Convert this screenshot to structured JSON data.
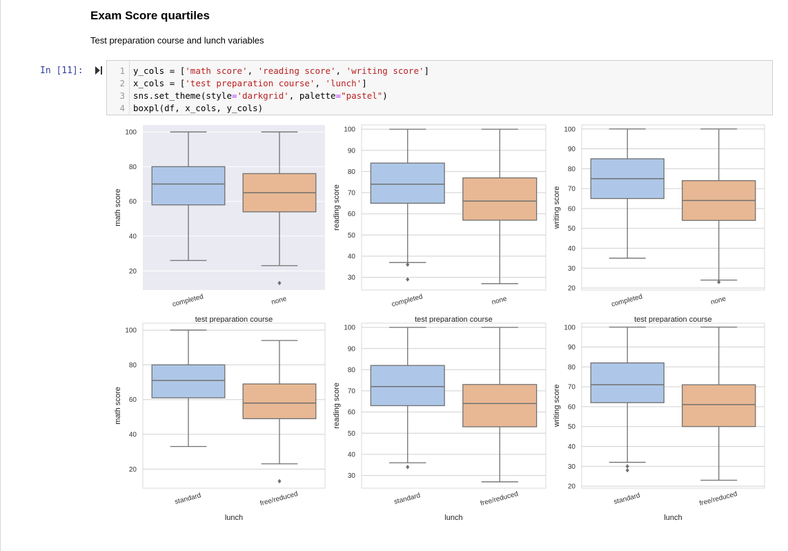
{
  "markdown": {
    "title": "Exam Score quartiles",
    "subtitle": "Test preparation course and lunch variables"
  },
  "cell": {
    "prompt": "In [11]:",
    "lines": [
      {
        "num": "1",
        "tokens": [
          [
            "y_cols ",
            ""
          ],
          [
            "=",
            ""
          ],
          [
            " [",
            ""
          ],
          [
            "'math score'",
            "str"
          ],
          [
            ", ",
            ""
          ],
          [
            "'reading score'",
            "str"
          ],
          [
            ", ",
            ""
          ],
          [
            "'writing score'",
            "str"
          ],
          [
            "]",
            ""
          ]
        ]
      },
      {
        "num": "2",
        "tokens": [
          [
            "x_cols ",
            ""
          ],
          [
            "=",
            ""
          ],
          [
            " [",
            ""
          ],
          [
            "'test preparation course'",
            "str"
          ],
          [
            ", ",
            ""
          ],
          [
            "'lunch'",
            "str"
          ],
          [
            "]",
            ""
          ]
        ]
      },
      {
        "num": "3",
        "tokens": [
          [
            "sns.set_theme(style",
            ""
          ],
          [
            "=",
            "op"
          ],
          [
            "'darkgrid'",
            "str"
          ],
          [
            ", palette",
            ""
          ],
          [
            "=",
            "op"
          ],
          [
            "\"pastel\"",
            "str"
          ],
          [
            ")",
            ""
          ]
        ]
      },
      {
        "num": "4",
        "tokens": [
          [
            "boxpl(df, x_cols, y_cols)",
            ""
          ]
        ]
      }
    ]
  },
  "colors": {
    "box1": "#aec7e8",
    "box2": "#e8b894",
    "line": "#707070",
    "grid_dark": "#eaeaf2",
    "grid_line": "#d0d0d0"
  },
  "chart_data": [
    {
      "type": "box",
      "ylabel": "math score",
      "xlabel": "test preparation course",
      "categories": [
        "completed",
        "none"
      ],
      "ylim": [
        9,
        104
      ],
      "yticks": [
        20,
        40,
        60,
        80,
        100
      ],
      "style": "darkgrid",
      "boxes": [
        {
          "whislo": 26,
          "q1": 58,
          "med": 70,
          "q3": 80,
          "whishi": 100,
          "fliers": []
        },
        {
          "whislo": 23,
          "q1": 54,
          "med": 65,
          "q3": 76,
          "whishi": 100,
          "fliers": [
            13
          ]
        }
      ]
    },
    {
      "type": "box",
      "ylabel": "reading score",
      "xlabel": "test preparation course",
      "categories": [
        "completed",
        "none"
      ],
      "ylim": [
        24,
        102
      ],
      "yticks": [
        30,
        40,
        50,
        60,
        70,
        80,
        90,
        100
      ],
      "style": "whitegrid",
      "boxes": [
        {
          "whislo": 37,
          "q1": 65,
          "med": 74,
          "q3": 84,
          "whishi": 100,
          "fliers": [
            36,
            29
          ]
        },
        {
          "whislo": 27,
          "q1": 57,
          "med": 66,
          "q3": 77,
          "whishi": 100,
          "fliers": []
        }
      ]
    },
    {
      "type": "box",
      "ylabel": "writing score",
      "xlabel": "test preparation course",
      "categories": [
        "completed",
        "none"
      ],
      "ylim": [
        19,
        102
      ],
      "yticks": [
        20,
        30,
        40,
        50,
        60,
        70,
        80,
        90,
        100
      ],
      "style": "whitegrid",
      "boxes": [
        {
          "whislo": 35,
          "q1": 65,
          "med": 75,
          "q3": 85,
          "whishi": 100,
          "fliers": []
        },
        {
          "whislo": 24,
          "q1": 54,
          "med": 64,
          "q3": 74,
          "whishi": 100,
          "fliers": [
            23
          ]
        }
      ]
    },
    {
      "type": "box",
      "ylabel": "math score",
      "xlabel": "lunch",
      "categories": [
        "standard",
        "free/reduced"
      ],
      "ylim": [
        9,
        104
      ],
      "yticks": [
        20,
        40,
        60,
        80,
        100
      ],
      "style": "whitegrid",
      "boxes": [
        {
          "whislo": 33,
          "q1": 61,
          "med": 71,
          "q3": 80,
          "whishi": 100,
          "fliers": []
        },
        {
          "whislo": 23,
          "q1": 49,
          "med": 58,
          "q3": 69,
          "whishi": 94,
          "fliers": [
            13
          ]
        }
      ]
    },
    {
      "type": "box",
      "ylabel": "reading score",
      "xlabel": "lunch",
      "categories": [
        "standard",
        "free/reduced"
      ],
      "ylim": [
        24,
        102
      ],
      "yticks": [
        30,
        40,
        50,
        60,
        70,
        80,
        90,
        100
      ],
      "style": "whitegrid",
      "boxes": [
        {
          "whislo": 36,
          "q1": 63,
          "med": 72,
          "q3": 82,
          "whishi": 100,
          "fliers": [
            34
          ]
        },
        {
          "whislo": 27,
          "q1": 53,
          "med": 64,
          "q3": 73,
          "whishi": 100,
          "fliers": []
        }
      ]
    },
    {
      "type": "box",
      "ylabel": "writing score",
      "xlabel": "lunch",
      "categories": [
        "standard",
        "free/reduced"
      ],
      "ylim": [
        19,
        102
      ],
      "yticks": [
        20,
        30,
        40,
        50,
        60,
        70,
        80,
        90,
        100
      ],
      "style": "whitegrid",
      "boxes": [
        {
          "whislo": 32,
          "q1": 62,
          "med": 71,
          "q3": 82,
          "whishi": 100,
          "fliers": [
            30,
            28
          ]
        },
        {
          "whislo": 23,
          "q1": 50,
          "med": 61,
          "q3": 71,
          "whishi": 100,
          "fliers": []
        }
      ]
    }
  ]
}
